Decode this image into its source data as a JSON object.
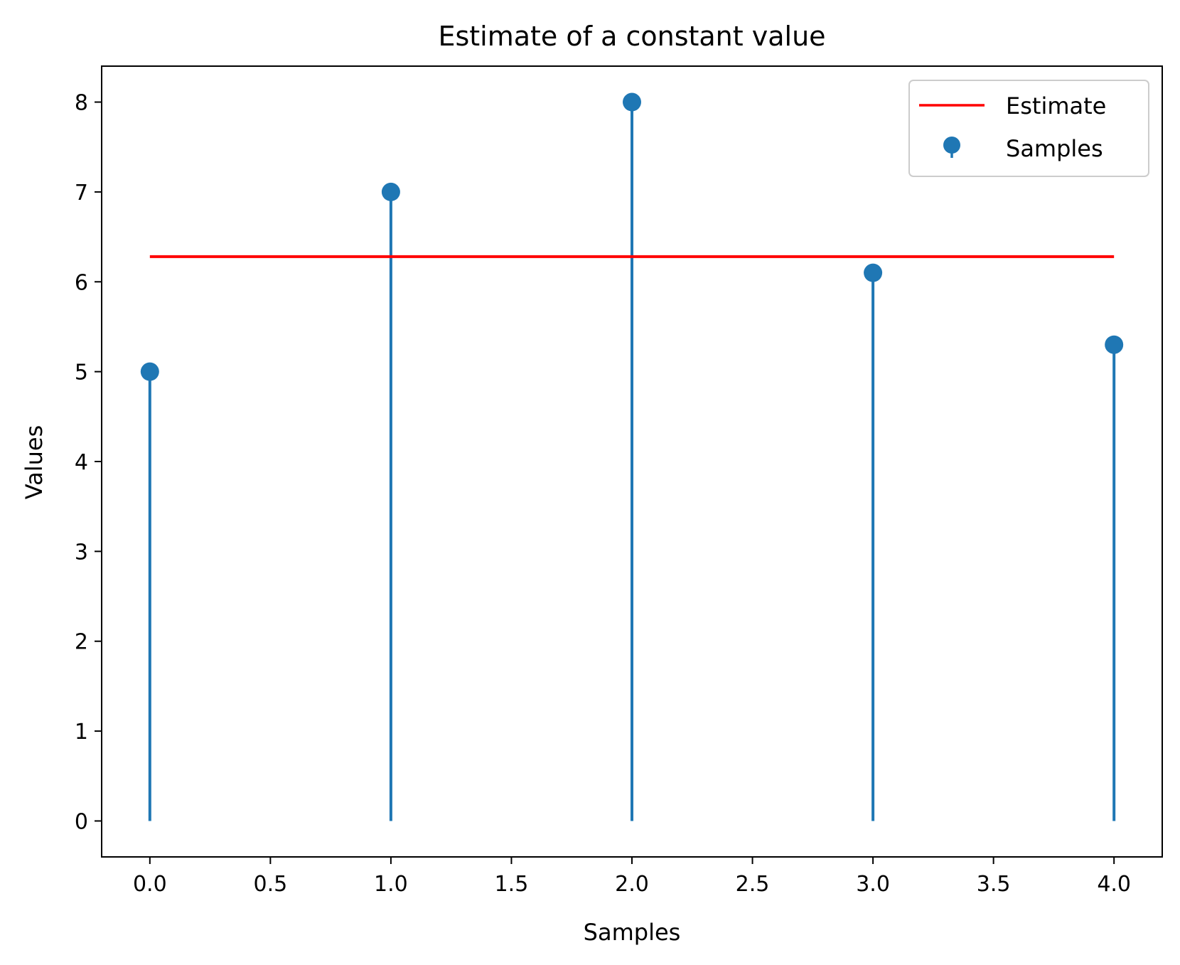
{
  "chart_data": {
    "type": "stem",
    "title": "Estimate of a constant value",
    "xlabel": "Samples",
    "ylabel": "Values",
    "xlim": [
      -0.2,
      4.2
    ],
    "ylim": [
      -0.4,
      8.4
    ],
    "xticks": [
      "0.0",
      "0.5",
      "1.0",
      "1.5",
      "2.0",
      "2.5",
      "3.0",
      "3.5",
      "4.0"
    ],
    "yticks": [
      "0",
      "1",
      "2",
      "3",
      "4",
      "5",
      "6",
      "7",
      "8"
    ],
    "grid": false,
    "legend_position": "top-right",
    "series": [
      {
        "name": "Samples",
        "kind": "stem",
        "color": "#1f77b4",
        "x": [
          0,
          1,
          2,
          3,
          4
        ],
        "y": [
          5.0,
          7.0,
          8.0,
          6.1,
          5.3
        ]
      },
      {
        "name": "Estimate",
        "kind": "line",
        "color": "#ff0000",
        "x": [
          0,
          4
        ],
        "y": [
          6.28,
          6.28
        ]
      }
    ]
  }
}
